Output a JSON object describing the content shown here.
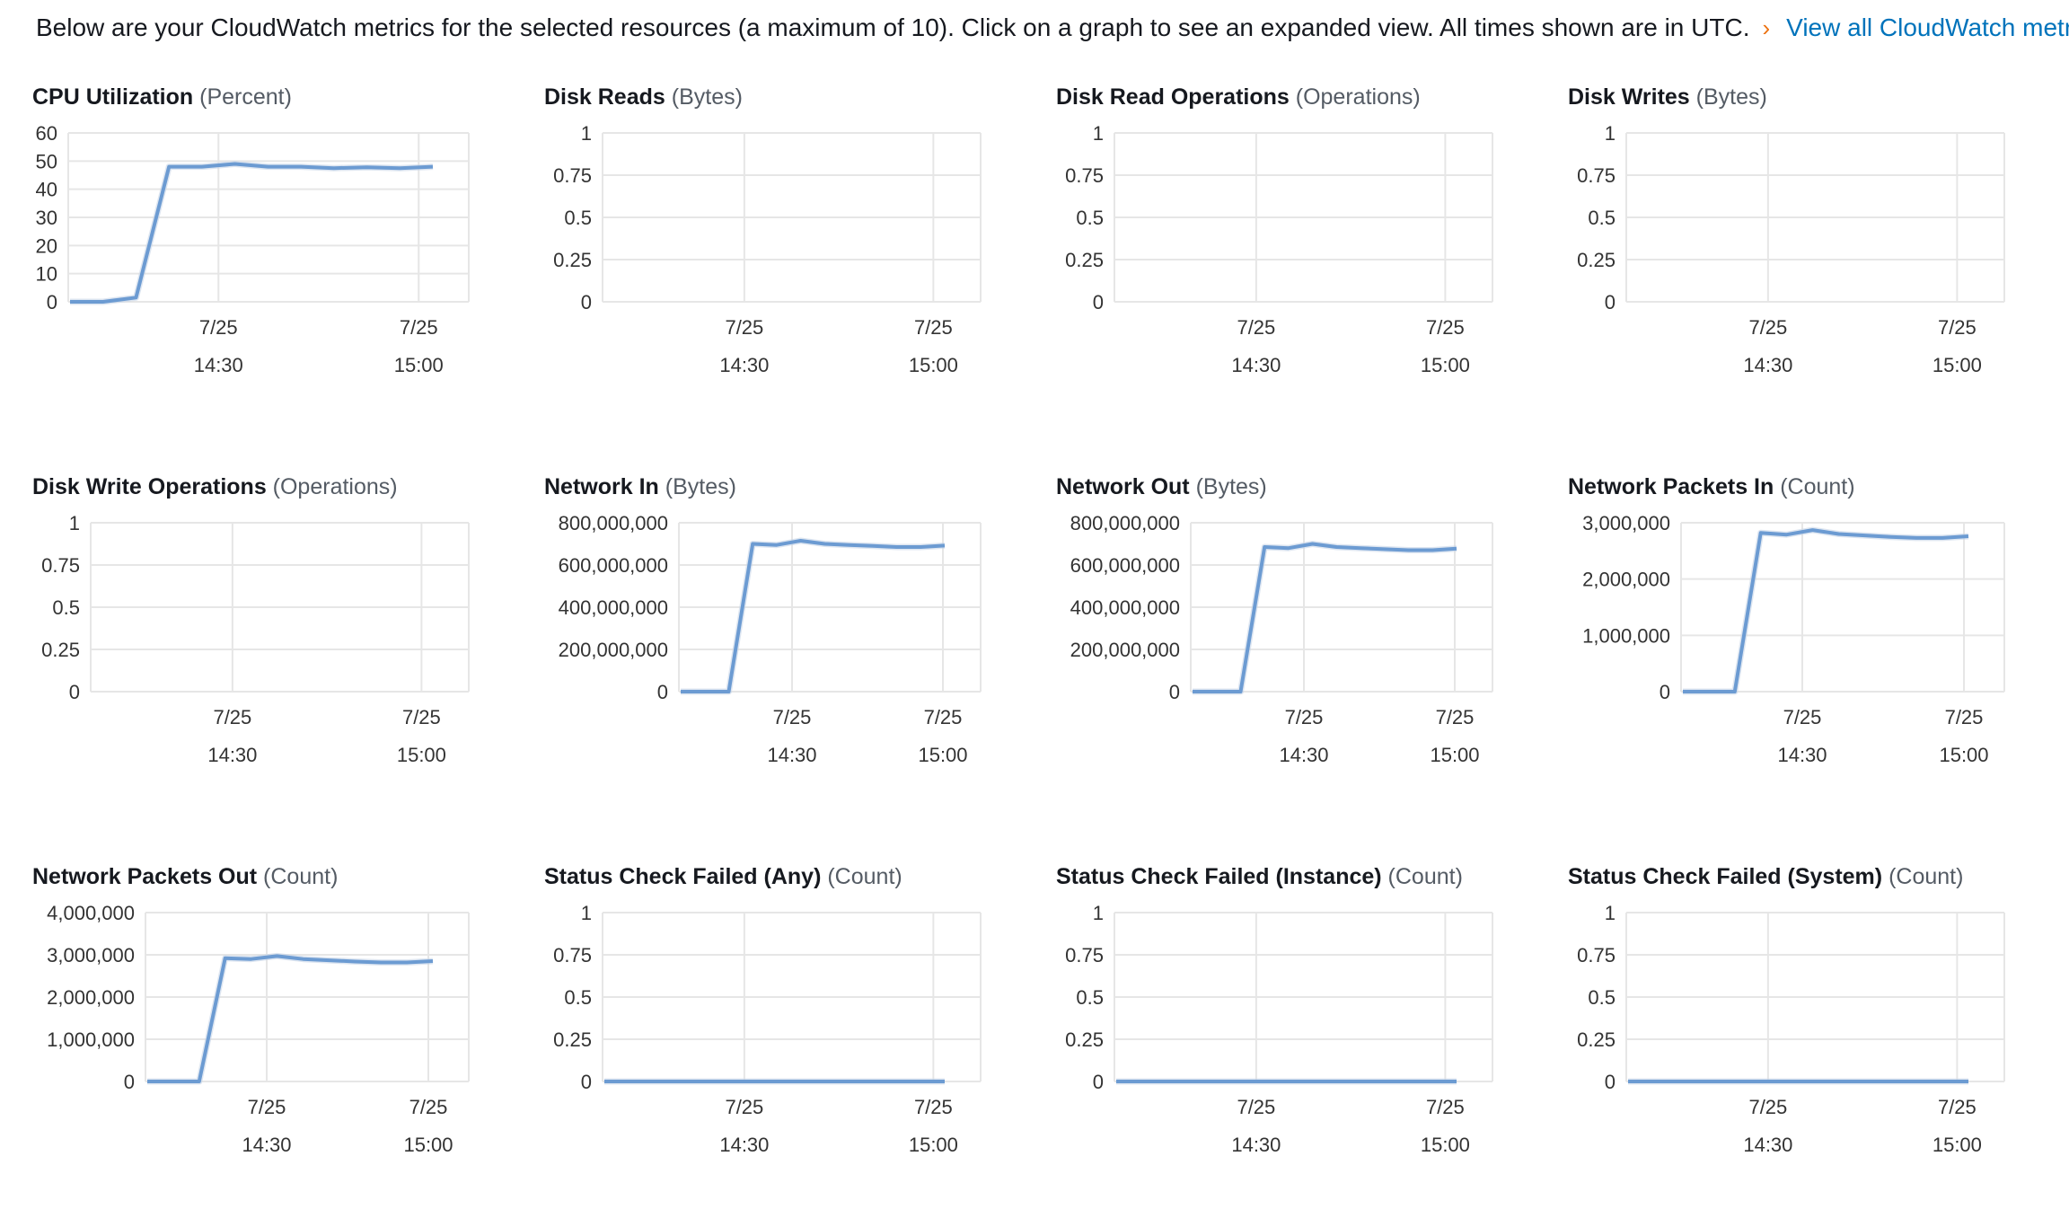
{
  "intro": {
    "text": "Below are your CloudWatch metrics for the selected resources (a maximum of 10). Click on a graph to see an expanded view. All times shown are in UTC.",
    "arrow": "›",
    "link": "View all CloudWatch metrics"
  },
  "colors": {
    "line": "#6c9bd2",
    "grid": "#e6e6e6",
    "link": "#0073bb",
    "arrow": "#ec7211"
  },
  "charts": [
    {
      "title": "CPU Utilization",
      "unit": "(Percent)",
      "chart_data": {
        "type": "line",
        "x_labels": [
          [
            "7/25",
            "14:30"
          ],
          [
            "7/25",
            "15:00"
          ]
        ],
        "y_ticks": [
          "0",
          "10",
          "20",
          "30",
          "40",
          "50",
          "60"
        ],
        "ylim": [
          0,
          60
        ],
        "x": [
          0,
          1,
          2,
          3,
          4,
          5,
          6,
          7,
          8,
          9,
          10,
          11
        ],
        "values": [
          0,
          0,
          1.5,
          48,
          48,
          49,
          48,
          48,
          47.5,
          47.8,
          47.5,
          48
        ],
        "series_shown": true
      }
    },
    {
      "title": "Disk Reads",
      "unit": "(Bytes)",
      "chart_data": {
        "type": "line",
        "x_labels": [
          [
            "7/25",
            "14:30"
          ],
          [
            "7/25",
            "15:00"
          ]
        ],
        "y_ticks": [
          "0",
          "0.25",
          "0.5",
          "0.75",
          "1"
        ],
        "ylim": [
          0,
          1
        ],
        "values": [],
        "series_shown": false
      }
    },
    {
      "title": "Disk Read Operations",
      "unit": "(Operations)",
      "chart_data": {
        "type": "line",
        "x_labels": [
          [
            "7/25",
            "14:30"
          ],
          [
            "7/25",
            "15:00"
          ]
        ],
        "y_ticks": [
          "0",
          "0.25",
          "0.5",
          "0.75",
          "1"
        ],
        "ylim": [
          0,
          1
        ],
        "values": [],
        "series_shown": false
      }
    },
    {
      "title": "Disk Writes",
      "unit": "(Bytes)",
      "chart_data": {
        "type": "line",
        "x_labels": [
          [
            "7/25",
            "14:30"
          ],
          [
            "7/25",
            "15:00"
          ]
        ],
        "y_ticks": [
          "0",
          "0.25",
          "0.5",
          "0.75",
          "1"
        ],
        "ylim": [
          0,
          1
        ],
        "values": [],
        "series_shown": false
      }
    },
    {
      "title": "Disk Write Operations",
      "unit": "(Operations)",
      "chart_data": {
        "type": "line",
        "x_labels": [
          [
            "7/25",
            "14:30"
          ],
          [
            "7/25",
            "15:00"
          ]
        ],
        "y_ticks": [
          "0",
          "0.25",
          "0.5",
          "0.75",
          "1"
        ],
        "ylim": [
          0,
          1
        ],
        "values": [],
        "series_shown": false
      }
    },
    {
      "title": "Network In",
      "unit": "(Bytes)",
      "chart_data": {
        "type": "line",
        "x_labels": [
          [
            "7/25",
            "14:30"
          ],
          [
            "7/25",
            "15:00"
          ]
        ],
        "y_ticks": [
          "0",
          "200,000,000",
          "400,000,000",
          "600,000,000",
          "800,000,000"
        ],
        "ylim": [
          0,
          800000000
        ],
        "values": [
          0,
          0,
          0,
          700000000,
          695000000,
          715000000,
          700000000,
          695000000,
          690000000,
          685000000,
          685000000,
          692000000
        ],
        "series_shown": true
      }
    },
    {
      "title": "Network Out",
      "unit": "(Bytes)",
      "chart_data": {
        "type": "line",
        "x_labels": [
          [
            "7/25",
            "14:30"
          ],
          [
            "7/25",
            "15:00"
          ]
        ],
        "y_ticks": [
          "0",
          "200,000,000",
          "400,000,000",
          "600,000,000",
          "800,000,000"
        ],
        "ylim": [
          0,
          800000000
        ],
        "values": [
          0,
          0,
          0,
          685000000,
          680000000,
          700000000,
          685000000,
          680000000,
          675000000,
          670000000,
          670000000,
          678000000
        ],
        "series_shown": true
      }
    },
    {
      "title": "Network Packets In",
      "unit": "(Count)",
      "chart_data": {
        "type": "line",
        "x_labels": [
          [
            "7/25",
            "14:30"
          ],
          [
            "7/25",
            "15:00"
          ]
        ],
        "y_ticks": [
          "0",
          "1,000,000",
          "2,000,000",
          "3,000,000"
        ],
        "ylim": [
          0,
          3000000
        ],
        "values": [
          0,
          0,
          0,
          2820000,
          2790000,
          2870000,
          2800000,
          2775000,
          2750000,
          2730000,
          2730000,
          2760000
        ],
        "series_shown": true
      }
    },
    {
      "title": "Network Packets Out",
      "unit": "(Count)",
      "chart_data": {
        "type": "line",
        "x_labels": [
          [
            "7/25",
            "14:30"
          ],
          [
            "7/25",
            "15:00"
          ]
        ],
        "y_ticks": [
          "0",
          "1,000,000",
          "2,000,000",
          "3,000,000",
          "4,000,000"
        ],
        "ylim": [
          0,
          4000000
        ],
        "values": [
          0,
          0,
          0,
          2920000,
          2900000,
          2970000,
          2900000,
          2870000,
          2840000,
          2820000,
          2820000,
          2850000
        ],
        "series_shown": true
      }
    },
    {
      "title": "Status Check Failed (Any)",
      "unit": "(Count)",
      "chart_data": {
        "type": "line",
        "x_labels": [
          [
            "7/25",
            "14:30"
          ],
          [
            "7/25",
            "15:00"
          ]
        ],
        "y_ticks": [
          "0",
          "0.25",
          "0.5",
          "0.75",
          "1"
        ],
        "ylim": [
          0,
          1
        ],
        "values": [
          0,
          0,
          0,
          0,
          0,
          0,
          0,
          0,
          0,
          0,
          0,
          0
        ],
        "series_shown": true
      }
    },
    {
      "title": "Status Check Failed (Instance)",
      "unit": "(Count)",
      "chart_data": {
        "type": "line",
        "x_labels": [
          [
            "7/25",
            "14:30"
          ],
          [
            "7/25",
            "15:00"
          ]
        ],
        "y_ticks": [
          "0",
          "0.25",
          "0.5",
          "0.75",
          "1"
        ],
        "ylim": [
          0,
          1
        ],
        "values": [
          0,
          0,
          0,
          0,
          0,
          0,
          0,
          0,
          0,
          0,
          0,
          0
        ],
        "series_shown": true
      }
    },
    {
      "title": "Status Check Failed (System)",
      "unit": "(Count)",
      "chart_data": {
        "type": "line",
        "x_labels": [
          [
            "7/25",
            "14:30"
          ],
          [
            "7/25",
            "15:00"
          ]
        ],
        "y_ticks": [
          "0",
          "0.25",
          "0.5",
          "0.75",
          "1"
        ],
        "ylim": [
          0,
          1
        ],
        "values": [
          0,
          0,
          0,
          0,
          0,
          0,
          0,
          0,
          0,
          0,
          0,
          0
        ],
        "series_shown": true
      }
    }
  ]
}
